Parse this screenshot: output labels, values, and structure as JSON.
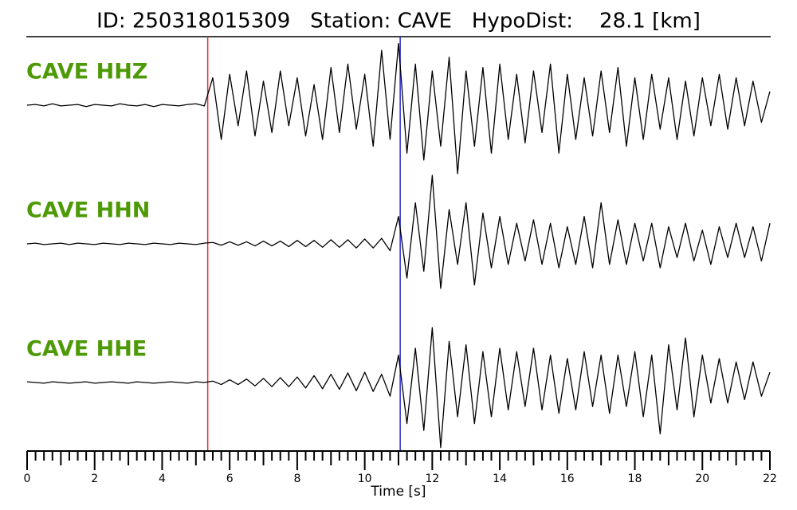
{
  "chart_data": {
    "type": "line",
    "title": "ID: 250318015309   Station: CAVE   HypoDist:    28.1 [km]",
    "x_label": "Time [s]",
    "label_color": "#4e9a06",
    "x": [
      0,
      0.25,
      0.5,
      0.75,
      1,
      1.25,
      1.5,
      1.75,
      2,
      2.25,
      2.5,
      2.75,
      3,
      3.25,
      3.5,
      3.75,
      4,
      4.25,
      4.5,
      4.75,
      5,
      5.25,
      5.5,
      5.75,
      6,
      6.25,
      6.5,
      6.75,
      7,
      7.25,
      7.5,
      7.75,
      8,
      8.25,
      8.5,
      8.75,
      9,
      9.25,
      9.5,
      9.75,
      10,
      10.25,
      10.5,
      10.75,
      11,
      11.25,
      11.5,
      11.75,
      12,
      12.25,
      12.5,
      12.75,
      13,
      13.25,
      13.5,
      13.75,
      14,
      14.25,
      14.5,
      14.75,
      15,
      15.25,
      15.5,
      15.75,
      16,
      16.25,
      16.5,
      16.75,
      17,
      17.25,
      17.5,
      17.75,
      18,
      18.25,
      18.5,
      18.75,
      19,
      19.25,
      19.5,
      19.75,
      20,
      20.25,
      20.5,
      20.75,
      21,
      21.25,
      21.5,
      21.75,
      22
    ],
    "series": [
      {
        "name": "CAVE HHZ",
        "color": "#000000",
        "values": [
          0,
          0.01,
          -0.01,
          0.02,
          -0.01,
          0,
          0.01,
          -0.02,
          0.01,
          0,
          -0.01,
          0.02,
          0,
          -0.01,
          0.01,
          -0.02,
          0.01,
          0,
          -0.01,
          0.01,
          0.02,
          -0.01,
          0.4,
          -0.5,
          0.45,
          -0.3,
          0.5,
          -0.45,
          0.35,
          -0.4,
          0.5,
          -0.3,
          0.4,
          -0.45,
          0.3,
          -0.5,
          0.55,
          -0.4,
          0.6,
          -0.35,
          0.45,
          -0.6,
          0.8,
          -0.5,
          0.9,
          -0.7,
          0.6,
          -0.8,
          0.5,
          -0.6,
          0.7,
          -1.0,
          0.5,
          -0.6,
          0.55,
          -0.7,
          0.6,
          -0.5,
          0.45,
          -0.55,
          0.5,
          -0.4,
          0.6,
          -0.7,
          0.45,
          -0.5,
          0.4,
          -0.45,
          0.5,
          -0.4,
          0.55,
          -0.6,
          0.4,
          -0.5,
          0.45,
          -0.35,
          0.4,
          -0.5,
          0.35,
          -0.45,
          0.4,
          -0.3,
          0.45,
          -0.35,
          0.4,
          -0.3,
          0.35,
          -0.25,
          0.2
        ]
      },
      {
        "name": "CAVE HHN",
        "color": "#000000",
        "values": [
          0,
          0.01,
          -0.01,
          0,
          0.01,
          -0.01,
          0.01,
          0,
          -0.01,
          0.01,
          0,
          -0.01,
          0.01,
          0,
          -0.01,
          0.01,
          0,
          -0.01,
          0.01,
          0,
          -0.01,
          0.01,
          0.02,
          -0.02,
          0.03,
          -0.02,
          0.03,
          -0.03,
          0.04,
          -0.03,
          0.04,
          -0.04,
          0.05,
          -0.04,
          0.05,
          -0.05,
          0.06,
          -0.05,
          0.06,
          -0.06,
          0.07,
          -0.06,
          0.08,
          -0.1,
          0.4,
          -0.5,
          0.6,
          -0.4,
          1.0,
          -0.65,
          0.5,
          -0.3,
          0.6,
          -0.6,
          0.45,
          -0.35,
          0.4,
          -0.3,
          0.3,
          -0.25,
          0.35,
          -0.3,
          0.3,
          -0.35,
          0.25,
          -0.3,
          0.4,
          -0.35,
          0.6,
          -0.3,
          0.35,
          -0.3,
          0.3,
          -0.25,
          0.3,
          -0.35,
          0.25,
          -0.2,
          0.3,
          -0.25,
          0.2,
          -0.3,
          0.25,
          -0.2,
          0.3,
          -0.2,
          0.25,
          -0.25,
          0.3
        ]
      },
      {
        "name": "CAVE HHE",
        "color": "#000000",
        "values": [
          0.01,
          0,
          -0.01,
          0.01,
          0,
          -0.01,
          0,
          0.01,
          -0.01,
          0,
          0.01,
          0,
          -0.01,
          0.01,
          0,
          -0.01,
          0,
          0.01,
          0,
          -0.01,
          0.01,
          0,
          0.02,
          -0.03,
          0.04,
          -0.03,
          0.05,
          -0.05,
          0.06,
          -0.06,
          0.07,
          -0.06,
          0.08,
          -0.08,
          0.1,
          -0.09,
          0.12,
          -0.1,
          0.14,
          -0.12,
          0.15,
          -0.13,
          0.12,
          -0.2,
          0.4,
          -0.6,
          0.5,
          -0.7,
          0.8,
          -0.95,
          0.6,
          -0.5,
          0.55,
          -0.6,
          0.45,
          -0.5,
          0.5,
          -0.4,
          0.45,
          -0.35,
          0.5,
          -0.4,
          0.4,
          -0.45,
          0.35,
          -0.4,
          0.45,
          -0.35,
          0.4,
          -0.45,
          0.4,
          -0.35,
          0.45,
          -0.5,
          0.4,
          -0.75,
          0.55,
          -0.4,
          0.65,
          -0.5,
          0.4,
          -0.3,
          0.35,
          -0.3,
          0.3,
          -0.25,
          0.3,
          -0.2,
          0.15
        ]
      }
    ],
    "picks": [
      {
        "time": 5.35,
        "color": "#e8302a"
      },
      {
        "time": 11.05,
        "color": "#2a2ad0"
      }
    ],
    "xlim": [
      0,
      22
    ],
    "xticks": [
      0,
      2,
      4,
      6,
      8,
      10,
      12,
      14,
      16,
      18,
      20,
      22
    ],
    "xminorticks": [
      0.25,
      0.5,
      0.75,
      1,
      1.25,
      1.5,
      1.75,
      2.25,
      2.5,
      2.75,
      3,
      3.25,
      3.5,
      3.75,
      4.25,
      4.5,
      4.75,
      5,
      5.25,
      5.5,
      5.75,
      6.25,
      6.5,
      6.75,
      7,
      7.25,
      7.5,
      7.75,
      8.25,
      8.5,
      8.75,
      9,
      9.25,
      9.5,
      9.75,
      10.25,
      10.5,
      10.75,
      11,
      11.25,
      11.5,
      11.75,
      12.25,
      12.5,
      12.75,
      13,
      13.25,
      13.5,
      13.75,
      14.25,
      14.5,
      14.75,
      15,
      15.25,
      15.5,
      15.75,
      16.25,
      16.5,
      16.75,
      17,
      17.25,
      17.5,
      17.75,
      18.25,
      18.5,
      18.75,
      19,
      19.25,
      19.5,
      19.75,
      20.25,
      20.5,
      20.75,
      21,
      21.25,
      21.5,
      21.75
    ]
  }
}
